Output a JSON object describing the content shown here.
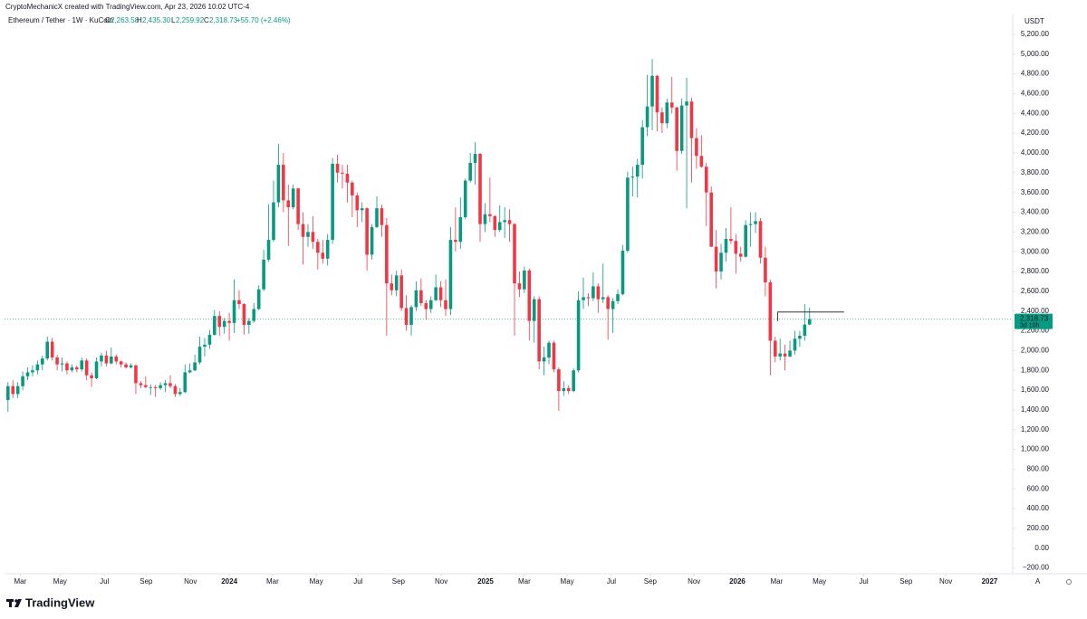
{
  "chart_data": {
    "type": "candlestick",
    "credit": "CryptoMechanicX created with TradingView.com, Apr 23, 2026 10:02 UTC-4",
    "legend": {
      "symbol": "Ethereum / Tether · 1W · KuCoin",
      "o_label": "O",
      "open": "2,263.58",
      "h_label": "H",
      "high": "2,435.30",
      "l_label": "L",
      "low": "2,259.92",
      "c_label": "C",
      "close": "2,318.73",
      "change": "+55.70 (+2.46%)"
    },
    "currency": "USDT",
    "last_price_label": "2,318.73",
    "countdown": "3d 10h",
    "logo": "TradingView",
    "up_color": "#089981",
    "down_color": "#f23645",
    "x": [
      -45,
      -44,
      -43,
      -42,
      -41,
      -40,
      -39,
      -38,
      -37,
      -36,
      -35,
      -34,
      -33,
      -32,
      -31,
      -30,
      -29,
      -28,
      -27,
      -26,
      -25,
      -24,
      -23,
      -22,
      -21,
      -20,
      -19,
      -18,
      -17,
      -16,
      -15,
      -14,
      -13,
      -12,
      -11,
      -10,
      -9,
      -8,
      -7,
      -6,
      -5,
      -4,
      -3,
      -2,
      -1,
      0,
      1,
      2,
      3,
      4,
      5,
      6,
      7,
      8,
      9,
      10,
      11,
      12,
      13,
      14,
      15,
      16,
      17,
      18,
      19,
      20,
      21,
      22,
      23,
      24,
      25,
      26,
      27,
      28,
      29,
      30,
      31,
      32,
      33,
      34,
      35,
      36,
      37,
      38,
      39,
      40,
      41,
      42,
      43,
      44,
      45,
      46,
      47,
      48,
      49,
      50,
      51,
      52,
      53,
      54,
      55,
      56,
      57,
      58,
      59,
      60,
      61,
      62,
      63,
      64,
      65,
      66,
      67,
      68,
      69,
      70,
      71,
      72,
      73,
      74,
      75,
      76,
      77,
      78,
      79,
      80,
      81,
      82,
      83,
      84,
      85,
      86,
      87,
      88,
      89,
      90,
      91,
      92,
      93,
      94,
      95,
      96,
      97,
      98,
      99,
      100,
      101,
      102,
      103,
      104,
      105,
      106,
      107,
      108,
      109,
      110,
      111,
      112,
      113,
      114,
      115,
      116,
      117,
      118
    ],
    "candles": [
      [
        1500,
        1680,
        1380,
        1640
      ],
      [
        1640,
        1700,
        1520,
        1560
      ],
      [
        1560,
        1680,
        1520,
        1640
      ],
      [
        1640,
        1790,
        1600,
        1740
      ],
      [
        1740,
        1830,
        1700,
        1780
      ],
      [
        1780,
        1850,
        1740,
        1800
      ],
      [
        1800,
        1900,
        1760,
        1860
      ],
      [
        1860,
        1950,
        1800,
        1920
      ],
      [
        1920,
        2140,
        1900,
        2090
      ],
      [
        2090,
        2130,
        1900,
        1930
      ],
      [
        1930,
        1960,
        1800,
        1860
      ],
      [
        1860,
        1930,
        1790,
        1870
      ],
      [
        1870,
        1890,
        1760,
        1800
      ],
      [
        1800,
        1860,
        1780,
        1830
      ],
      [
        1830,
        1850,
        1780,
        1810
      ],
      [
        1810,
        1930,
        1790,
        1900
      ],
      [
        1900,
        1920,
        1700,
        1750
      ],
      [
        1750,
        1780,
        1630,
        1720
      ],
      [
        1720,
        1930,
        1710,
        1890
      ],
      [
        1890,
        1980,
        1840,
        1950
      ],
      [
        1950,
        2000,
        1840,
        1870
      ],
      [
        1870,
        2030,
        1860,
        1940
      ],
      [
        1940,
        1960,
        1860,
        1890
      ],
      [
        1890,
        1900,
        1830,
        1860
      ],
      [
        1860,
        1880,
        1820,
        1830
      ],
      [
        1830,
        1870,
        1820,
        1850
      ],
      [
        1850,
        1860,
        1560,
        1670
      ],
      [
        1670,
        1690,
        1620,
        1650
      ],
      [
        1650,
        1740,
        1620,
        1630
      ],
      [
        1630,
        1660,
        1550,
        1630
      ],
      [
        1630,
        1650,
        1530,
        1620
      ],
      [
        1620,
        1680,
        1600,
        1650
      ],
      [
        1650,
        1700,
        1580,
        1670
      ],
      [
        1670,
        1750,
        1620,
        1640
      ],
      [
        1640,
        1660,
        1530,
        1560
      ],
      [
        1560,
        1620,
        1540,
        1580
      ],
      [
        1580,
        1860,
        1570,
        1780
      ],
      [
        1780,
        1870,
        1770,
        1800
      ],
      [
        1800,
        1960,
        1790,
        1880
      ],
      [
        1880,
        2140,
        1860,
        2040
      ],
      [
        2040,
        2130,
        1940,
        2060
      ],
      [
        2060,
        2210,
        2020,
        2160
      ],
      [
        2160,
        2410,
        2150,
        2350
      ],
      [
        2350,
        2400,
        2150,
        2240
      ],
      [
        2240,
        2330,
        2170,
        2300
      ],
      [
        2300,
        2380,
        2100,
        2280
      ],
      [
        2280,
        2720,
        2180,
        2510
      ],
      [
        2510,
        2610,
        2420,
        2470
      ],
      [
        2470,
        2480,
        2160,
        2260
      ],
      [
        2260,
        2330,
        2170,
        2300
      ],
      [
        2300,
        2480,
        2280,
        2420
      ],
      [
        2420,
        2660,
        2410,
        2620
      ],
      [
        2620,
        3020,
        2600,
        2920
      ],
      [
        2920,
        3480,
        2900,
        3120
      ],
      [
        3120,
        3720,
        3100,
        3500
      ],
      [
        3500,
        4090,
        3450,
        3880
      ],
      [
        3880,
        4000,
        3400,
        3520
      ],
      [
        3520,
        3680,
        3060,
        3450
      ],
      [
        3450,
        3680,
        3430,
        3640
      ],
      [
        3640,
        3650,
        3220,
        3280
      ],
      [
        3280,
        3400,
        2870,
        3150
      ],
      [
        3150,
        3280,
        3050,
        3200
      ],
      [
        3200,
        3360,
        3030,
        3100
      ],
      [
        3100,
        3130,
        2820,
        2990
      ],
      [
        2990,
        3120,
        2880,
        2930
      ],
      [
        2930,
        3180,
        2860,
        3120
      ],
      [
        3120,
        3950,
        3080,
        3890
      ],
      [
        3890,
        3980,
        3700,
        3800
      ],
      [
        3800,
        3880,
        3640,
        3790
      ],
      [
        3790,
        3880,
        3500,
        3700
      ],
      [
        3700,
        3720,
        3350,
        3570
      ],
      [
        3570,
        3600,
        3250,
        3420
      ],
      [
        3420,
        3500,
        3300,
        3440
      ],
      [
        3440,
        3450,
        2810,
        2970
      ],
      [
        2970,
        3280,
        2920,
        3250
      ],
      [
        3250,
        3560,
        3240,
        3440
      ],
      [
        3440,
        3480,
        3150,
        3270
      ],
      [
        3270,
        3340,
        2150,
        2680
      ],
      [
        2680,
        2770,
        2560,
        2610
      ],
      [
        2610,
        2810,
        2550,
        2760
      ],
      [
        2760,
        2820,
        2400,
        2430
      ],
      [
        2430,
        2560,
        2200,
        2260
      ],
      [
        2260,
        2460,
        2150,
        2440
      ],
      [
        2440,
        2700,
        2400,
        2610
      ],
      [
        2610,
        2730,
        2450,
        2480
      ],
      [
        2480,
        2510,
        2310,
        2420
      ],
      [
        2420,
        2550,
        2380,
        2510
      ],
      [
        2510,
        2770,
        2500,
        2640
      ],
      [
        2640,
        2700,
        2440,
        2510
      ],
      [
        2510,
        2720,
        2350,
        2420
      ],
      [
        2420,
        3250,
        2360,
        3120
      ],
      [
        3120,
        3450,
        3000,
        3100
      ],
      [
        3100,
        3550,
        3030,
        3350
      ],
      [
        3350,
        3740,
        3330,
        3720
      ],
      [
        3720,
        4000,
        3700,
        3900
      ],
      [
        3900,
        4110,
        3680,
        3990
      ],
      [
        3990,
        4000,
        3100,
        3280
      ],
      [
        3280,
        3490,
        3200,
        3380
      ],
      [
        3380,
        3750,
        3300,
        3360
      ],
      [
        3360,
        3370,
        3150,
        3220
      ],
      [
        3220,
        3470,
        3200,
        3300
      ],
      [
        3300,
        3450,
        3140,
        3320
      ],
      [
        3320,
        3430,
        3100,
        3280
      ],
      [
        3280,
        3290,
        2150,
        2680
      ],
      [
        2680,
        2800,
        2540,
        2620
      ],
      [
        2620,
        2850,
        2580,
        2810
      ],
      [
        2810,
        2830,
        2100,
        2300
      ],
      [
        2300,
        2550,
        2080,
        2520
      ],
      [
        2520,
        2550,
        1810,
        1890
      ],
      [
        1890,
        2040,
        1750,
        1930
      ],
      [
        1930,
        2100,
        1860,
        2080
      ],
      [
        2080,
        2100,
        1780,
        1810
      ],
      [
        1810,
        1830,
        1390,
        1590
      ],
      [
        1590,
        1690,
        1540,
        1620
      ],
      [
        1620,
        1650,
        1560,
        1590
      ],
      [
        1590,
        1820,
        1580,
        1800
      ],
      [
        1800,
        2600,
        1780,
        2510
      ],
      [
        2510,
        2740,
        2420,
        2540
      ],
      [
        2540,
        2580,
        2450,
        2530
      ],
      [
        2530,
        2790,
        2500,
        2650
      ],
      [
        2650,
        2680,
        2380,
        2520
      ],
      [
        2520,
        2880,
        2480,
        2540
      ],
      [
        2540,
        2560,
        2110,
        2420
      ],
      [
        2420,
        2530,
        2180,
        2500
      ],
      [
        2500,
        2620,
        2470,
        2570
      ],
      [
        2570,
        3070,
        2560,
        3010
      ],
      [
        3010,
        3810,
        2990,
        3750
      ],
      [
        3750,
        3860,
        3560,
        3760
      ],
      [
        3760,
        3940,
        3550,
        3880
      ],
      [
        3880,
        4330,
        3740,
        4260
      ],
      [
        4260,
        4790,
        4170,
        4470
      ],
      [
        4470,
        4950,
        4230,
        4780
      ],
      [
        4780,
        4790,
        4220,
        4410
      ],
      [
        4410,
        4460,
        4200,
        4300
      ],
      [
        4300,
        4550,
        4250,
        4510
      ],
      [
        4510,
        4770,
        4400,
        4460
      ],
      [
        4460,
        4470,
        3820,
        4020
      ],
      [
        4020,
        4550,
        3990,
        4480
      ],
      [
        4480,
        4760,
        3440,
        4520
      ],
      [
        4520,
        4560,
        3700,
        4150
      ],
      [
        4150,
        4250,
        3840,
        3970
      ],
      [
        3970,
        4180,
        3850,
        3860
      ],
      [
        3860,
        3900,
        3260,
        3600
      ],
      [
        3600,
        3660,
        3050,
        3050
      ],
      [
        3050,
        3220,
        2630,
        2800
      ],
      [
        2800,
        3080,
        2720,
        2990
      ],
      [
        2990,
        3240,
        2900,
        3130
      ],
      [
        3130,
        3450,
        3080,
        3110
      ],
      [
        3110,
        3180,
        2780,
        2980
      ],
      [
        2980,
        3050,
        2900,
        2950
      ],
      [
        2950,
        3320,
        2940,
        3270
      ],
      [
        3270,
        3400,
        3050,
        3280
      ],
      [
        3280,
        3400,
        3190,
        3310
      ],
      [
        3310,
        3340,
        2880,
        2940
      ],
      [
        2940,
        3050,
        2550,
        2690
      ],
      [
        2690,
        2720,
        1750,
        2100
      ],
      [
        2100,
        2140,
        1880,
        1940
      ],
      [
        1940,
        2120,
        1900,
        1970
      ],
      [
        1970,
        2060,
        1800,
        1940
      ],
      [
        1940,
        2100,
        1930,
        2000
      ],
      [
        2000,
        2200,
        1960,
        2120
      ],
      [
        2120,
        2200,
        2040,
        2150
      ],
      [
        2150,
        2470,
        2100,
        2263.58
      ],
      [
        2263.58,
        2435.3,
        2259.92,
        2318.73
      ]
    ],
    "drawn_line": {
      "y": 2390,
      "x": [
        111.5,
        125
      ]
    },
    "xlim": [
      -45.7,
      159.3
    ],
    "xticks": [
      {
        "value": -42.5,
        "label": "Mar"
      },
      {
        "value": -34.4,
        "label": "May"
      },
      {
        "value": -25.4,
        "label": "Jul"
      },
      {
        "value": -16.9,
        "label": "Sep"
      },
      {
        "value": -7.9,
        "label": "Nov"
      },
      {
        "value": 0,
        "label": "2024"
      },
      {
        "value": 8.8,
        "label": "Mar"
      },
      {
        "value": 17.7,
        "label": "May"
      },
      {
        "value": 26.2,
        "label": "Jul"
      },
      {
        "value": 34.4,
        "label": "Sep"
      },
      {
        "value": 43.1,
        "label": "Nov"
      },
      {
        "value": 52.1,
        "label": "2025"
      },
      {
        "value": 60,
        "label": "Mar"
      },
      {
        "value": 68.7,
        "label": "May"
      },
      {
        "value": 77.7,
        "label": "Jul"
      },
      {
        "value": 85.6,
        "label": "Sep"
      },
      {
        "value": 94.5,
        "label": "Nov"
      },
      {
        "value": 103.3,
        "label": "2026"
      },
      {
        "value": 111.3,
        "label": "Mar"
      },
      {
        "value": 120,
        "label": "May"
      },
      {
        "value": 129,
        "label": "Jul"
      },
      {
        "value": 137.6,
        "label": "Sep"
      },
      {
        "value": 145.7,
        "label": "Nov"
      },
      {
        "value": 154.6,
        "label": "2027"
      }
    ],
    "ylim": [
      -240,
      5410
    ],
    "yticks": [
      {
        "value": -200,
        "label": "−200.00"
      },
      {
        "value": 0,
        "label": "0.00"
      },
      {
        "value": 200,
        "label": "200.00"
      },
      {
        "value": 400,
        "label": "400.00"
      },
      {
        "value": 600,
        "label": "600.00"
      },
      {
        "value": 800,
        "label": "800.00"
      },
      {
        "value": 1000,
        "label": "1,000.00"
      },
      {
        "value": 1200,
        "label": "1,200.00"
      },
      {
        "value": 1400,
        "label": "1,400.00"
      },
      {
        "value": 1600,
        "label": "1,600.00"
      },
      {
        "value": 1800,
        "label": "1,800.00"
      },
      {
        "value": 2000,
        "label": "2,000.00"
      },
      {
        "value": 2200,
        "label": "2,200.00"
      },
      {
        "value": 2400,
        "label": "2,400.00"
      },
      {
        "value": 2600,
        "label": "2,600.00"
      },
      {
        "value": 2800,
        "label": "2,800.00"
      },
      {
        "value": 3000,
        "label": "3,000.00"
      },
      {
        "value": 3200,
        "label": "3,200.00"
      },
      {
        "value": 3400,
        "label": "3,400.00"
      },
      {
        "value": 3600,
        "label": "3,600.00"
      },
      {
        "value": 3800,
        "label": "3,800.00"
      },
      {
        "value": 4000,
        "label": "4,000.00"
      },
      {
        "value": 4200,
        "label": "4,200.00"
      },
      {
        "value": 4400,
        "label": "4,400.00"
      },
      {
        "value": 4600,
        "label": "4,600.00"
      },
      {
        "value": 4800,
        "label": "4,800.00"
      },
      {
        "value": 5000,
        "label": "5,000.00"
      },
      {
        "value": 5200,
        "label": "5,200.00"
      }
    ],
    "grid": false
  }
}
